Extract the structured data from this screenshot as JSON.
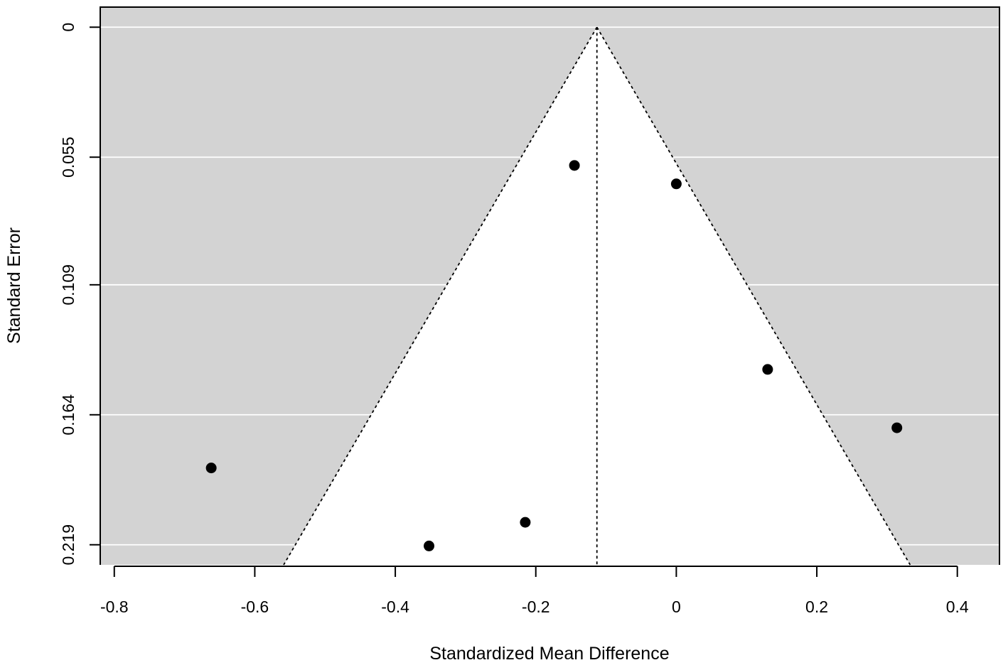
{
  "chart_data": {
    "type": "scatter",
    "subtype": "funnel plot",
    "xlabel": "Standardized Mean Difference",
    "ylabel": "Standard Error",
    "x_ticks": [
      "-0.8",
      "-0.6",
      "-0.4",
      "-0.2",
      "0",
      "0.2",
      "0.4"
    ],
    "y_ticks": [
      "0",
      "0.055",
      "0.109",
      "0.164",
      "0.219"
    ],
    "xlim": [
      -0.82,
      0.46
    ],
    "ylim": [
      0.2275,
      -0.0085
    ],
    "y_reversed": true,
    "center_estimate": -0.113,
    "funnel_z": 1.96,
    "grid": "horizontal",
    "background_color": "#d3d3d3",
    "funnel_fill": "#ffffff",
    "points": [
      {
        "x": -0.662,
        "y": 0.1865
      },
      {
        "x": -0.352,
        "y": 0.2195
      },
      {
        "x": -0.215,
        "y": 0.2095
      },
      {
        "x": -0.145,
        "y": 0.0585
      },
      {
        "x": 0.0,
        "y": 0.0663
      },
      {
        "x": 0.13,
        "y": 0.1448
      },
      {
        "x": 0.314,
        "y": 0.1695
      }
    ]
  }
}
